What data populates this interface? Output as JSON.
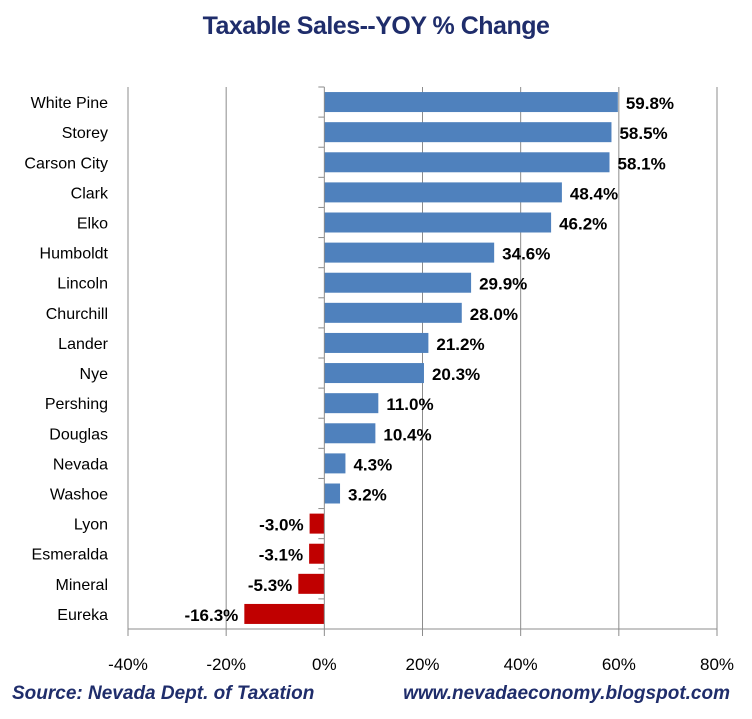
{
  "chart_data": {
    "type": "bar",
    "orientation": "horizontal",
    "title": "Taxable Sales--YOY % Change",
    "categories": [
      "White Pine",
      "Storey",
      "Carson City",
      "Clark",
      "Elko",
      "Humboldt",
      "Lincoln",
      "Churchill",
      "Lander",
      "Nye",
      "Pershing",
      "Douglas",
      "Nevada",
      "Washoe",
      "Lyon",
      "Esmeralda",
      "Mineral",
      "Eureka"
    ],
    "values": [
      59.8,
      58.5,
      58.1,
      48.4,
      46.2,
      34.6,
      29.9,
      28.0,
      21.2,
      20.3,
      11.0,
      10.4,
      4.3,
      3.2,
      -3.0,
      -3.1,
      -5.3,
      -16.3
    ],
    "data_labels": [
      "59.8%",
      "58.5%",
      "58.1%",
      "48.4%",
      "46.2%",
      "34.6%",
      "29.9%",
      "28.0%",
      "21.2%",
      "20.3%",
      "11.0%",
      "10.4%",
      "4.3%",
      "3.2%",
      "-3.0%",
      "-3.1%",
      "-5.3%",
      "-16.3%"
    ],
    "xlim": [
      -40,
      80
    ],
    "xticks": [
      -40,
      -20,
      0,
      20,
      40,
      60,
      80
    ],
    "xtick_labels": [
      "-40%",
      "-20%",
      "0%",
      "20%",
      "40%",
      "60%",
      "80%"
    ],
    "grid": "vertical",
    "colors": {
      "positive": "#4F81BD",
      "negative": "#C00000",
      "title": "#1F2D6B"
    }
  },
  "footer": {
    "source": "Source: Nevada Dept. of Taxation",
    "website": "www.nevadaeconomy.blogspot.com"
  }
}
